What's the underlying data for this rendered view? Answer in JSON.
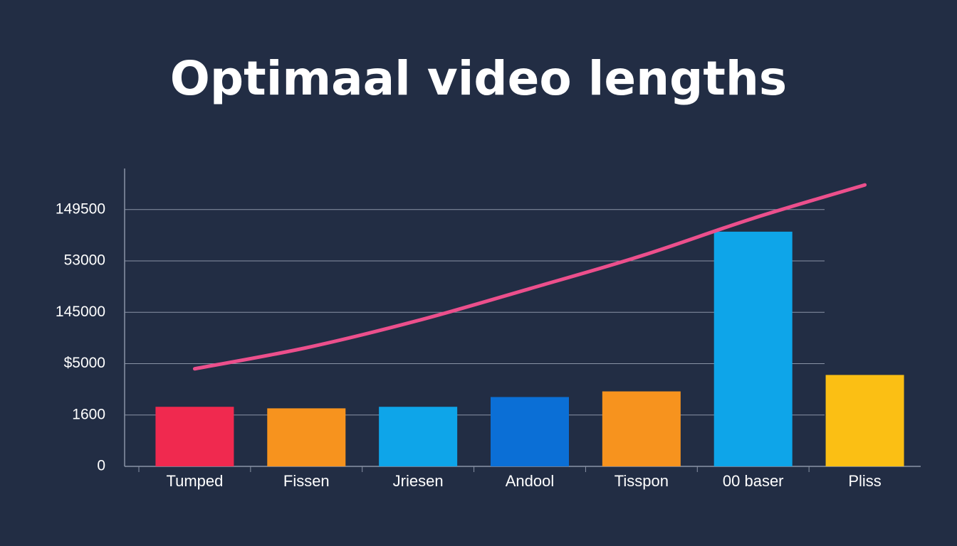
{
  "chart_data": {
    "type": "bar",
    "title": "Optimaal video lengths",
    "categories": [
      "Tumped",
      "Fissen",
      "Jriesen",
      "Andool",
      "Tisspon",
      "00 baser",
      "Pliss"
    ],
    "series": [
      {
        "type": "bar",
        "colors": [
          "#f0294f",
          "#f7931e",
          "#0ea5e9",
          "#0b6fd6",
          "#f7931e",
          "#0ea5e9",
          "#fbbf14"
        ],
        "values": [
          1.16,
          1.13,
          1.16,
          1.35,
          1.46,
          4.57,
          1.78
        ]
      },
      {
        "type": "line",
        "color": "#ec4f8c",
        "values": [
          1.9,
          2.31,
          2.84,
          3.46,
          4.1,
          4.83,
          5.48
        ]
      }
    ],
    "ylim": [
      0,
      5.8
    ],
    "yticks": [
      {
        "value": 0,
        "label": "0"
      },
      {
        "value": 1,
        "label": "1600"
      },
      {
        "value": 2,
        "label": "$5000"
      },
      {
        "value": 3,
        "label": "145000"
      },
      {
        "value": 4,
        "label": "53000"
      },
      {
        "value": 5,
        "label": "149500"
      }
    ],
    "grid": true
  }
}
